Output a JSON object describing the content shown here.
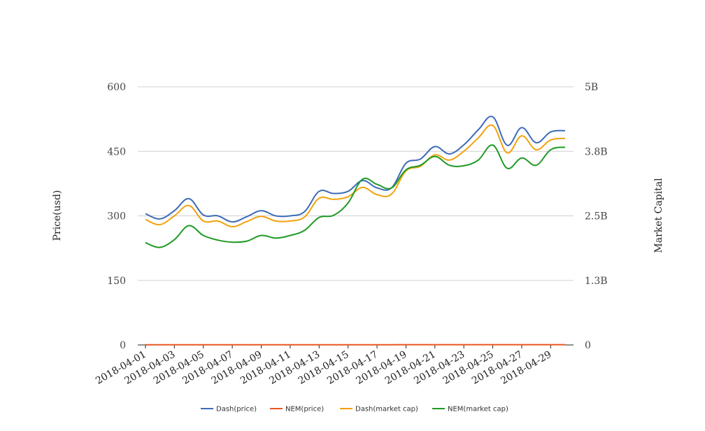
{
  "chart_data": {
    "type": "line",
    "title": "",
    "xlabel": "",
    "ylabel": "Price(usd)",
    "ylabel_right": "Market Capital",
    "ylim": [
      0,
      600
    ],
    "y_ticks": [
      0,
      150,
      300,
      450,
      600
    ],
    "y_right_ticks": [
      "0",
      "1.3B",
      "2.5B",
      "3.8B",
      "5B"
    ],
    "y_right_max": 5000000000,
    "x": [
      "2018-04-01",
      "2018-04-02",
      "2018-04-03",
      "2018-04-04",
      "2018-04-05",
      "2018-04-06",
      "2018-04-07",
      "2018-04-08",
      "2018-04-09",
      "2018-04-10",
      "2018-04-11",
      "2018-04-12",
      "2018-04-13",
      "2018-04-14",
      "2018-04-15",
      "2018-04-16",
      "2018-04-17",
      "2018-04-18",
      "2018-04-19",
      "2018-04-20",
      "2018-04-21",
      "2018-04-22",
      "2018-04-23",
      "2018-04-24",
      "2018-04-25",
      "2018-04-26",
      "2018-04-27",
      "2018-04-28",
      "2018-04-29",
      "2018-04-30"
    ],
    "x_tick_labels": [
      "2018-04-01",
      "2018-04-03",
      "2018-04-05",
      "2018-04-07",
      "2018-04-09",
      "2018-04-11",
      "2018-04-13",
      "2018-04-15",
      "2018-04-17",
      "2018-04-19",
      "2018-04-21",
      "2018-04-23",
      "2018-04-25",
      "2018-04-27",
      "2018-04-29"
    ],
    "grid": true,
    "legend_position": "bottom",
    "series": [
      {
        "name": "Dash(price)",
        "axis": "left",
        "color": "#3d6bb8",
        "values": [
          305,
          293,
          312,
          340,
          302,
          300,
          286,
          298,
          312,
          300,
          300,
          310,
          357,
          352,
          357,
          382,
          365,
          365,
          422,
          432,
          461,
          444,
          465,
          500,
          530,
          464,
          505,
          470,
          495,
          498
        ]
      },
      {
        "name": "NEM(price)",
        "axis": "left",
        "color": "#e8561e",
        "values": [
          0.32,
          0.31,
          0.32,
          0.36,
          0.34,
          0.33,
          0.33,
          0.33,
          0.35,
          0.34,
          0.34,
          0.35,
          0.4,
          0.4,
          0.43,
          0.51,
          0.49,
          0.48,
          0.56,
          0.57,
          0.59,
          0.56,
          0.56,
          0.57,
          0.63,
          0.56,
          0.59,
          0.56,
          0.61,
          0.62
        ]
      },
      {
        "name": "Dash(market cap)",
        "axis": "right",
        "color": "#f2a20d",
        "values": [
          2430000000,
          2330000000,
          2500000000,
          2700000000,
          2400000000,
          2400000000,
          2290000000,
          2390000000,
          2490000000,
          2400000000,
          2400000000,
          2480000000,
          2840000000,
          2820000000,
          2870000000,
          3050000000,
          2910000000,
          2920000000,
          3370000000,
          3460000000,
          3680000000,
          3580000000,
          3750000000,
          4010000000,
          4250000000,
          3720000000,
          4050000000,
          3780000000,
          3970000000,
          4000000000
        ]
      },
      {
        "name": "NEM(market cap)",
        "axis": "right",
        "color": "#1f9a24",
        "values": [
          1980000000,
          1890000000,
          2040000000,
          2310000000,
          2120000000,
          2030000000,
          1990000000,
          2010000000,
          2120000000,
          2070000000,
          2120000000,
          2220000000,
          2470000000,
          2510000000,
          2750000000,
          3210000000,
          3110000000,
          3040000000,
          3390000000,
          3480000000,
          3650000000,
          3480000000,
          3470000000,
          3580000000,
          3870000000,
          3420000000,
          3620000000,
          3480000000,
          3780000000,
          3830000000
        ]
      }
    ]
  }
}
